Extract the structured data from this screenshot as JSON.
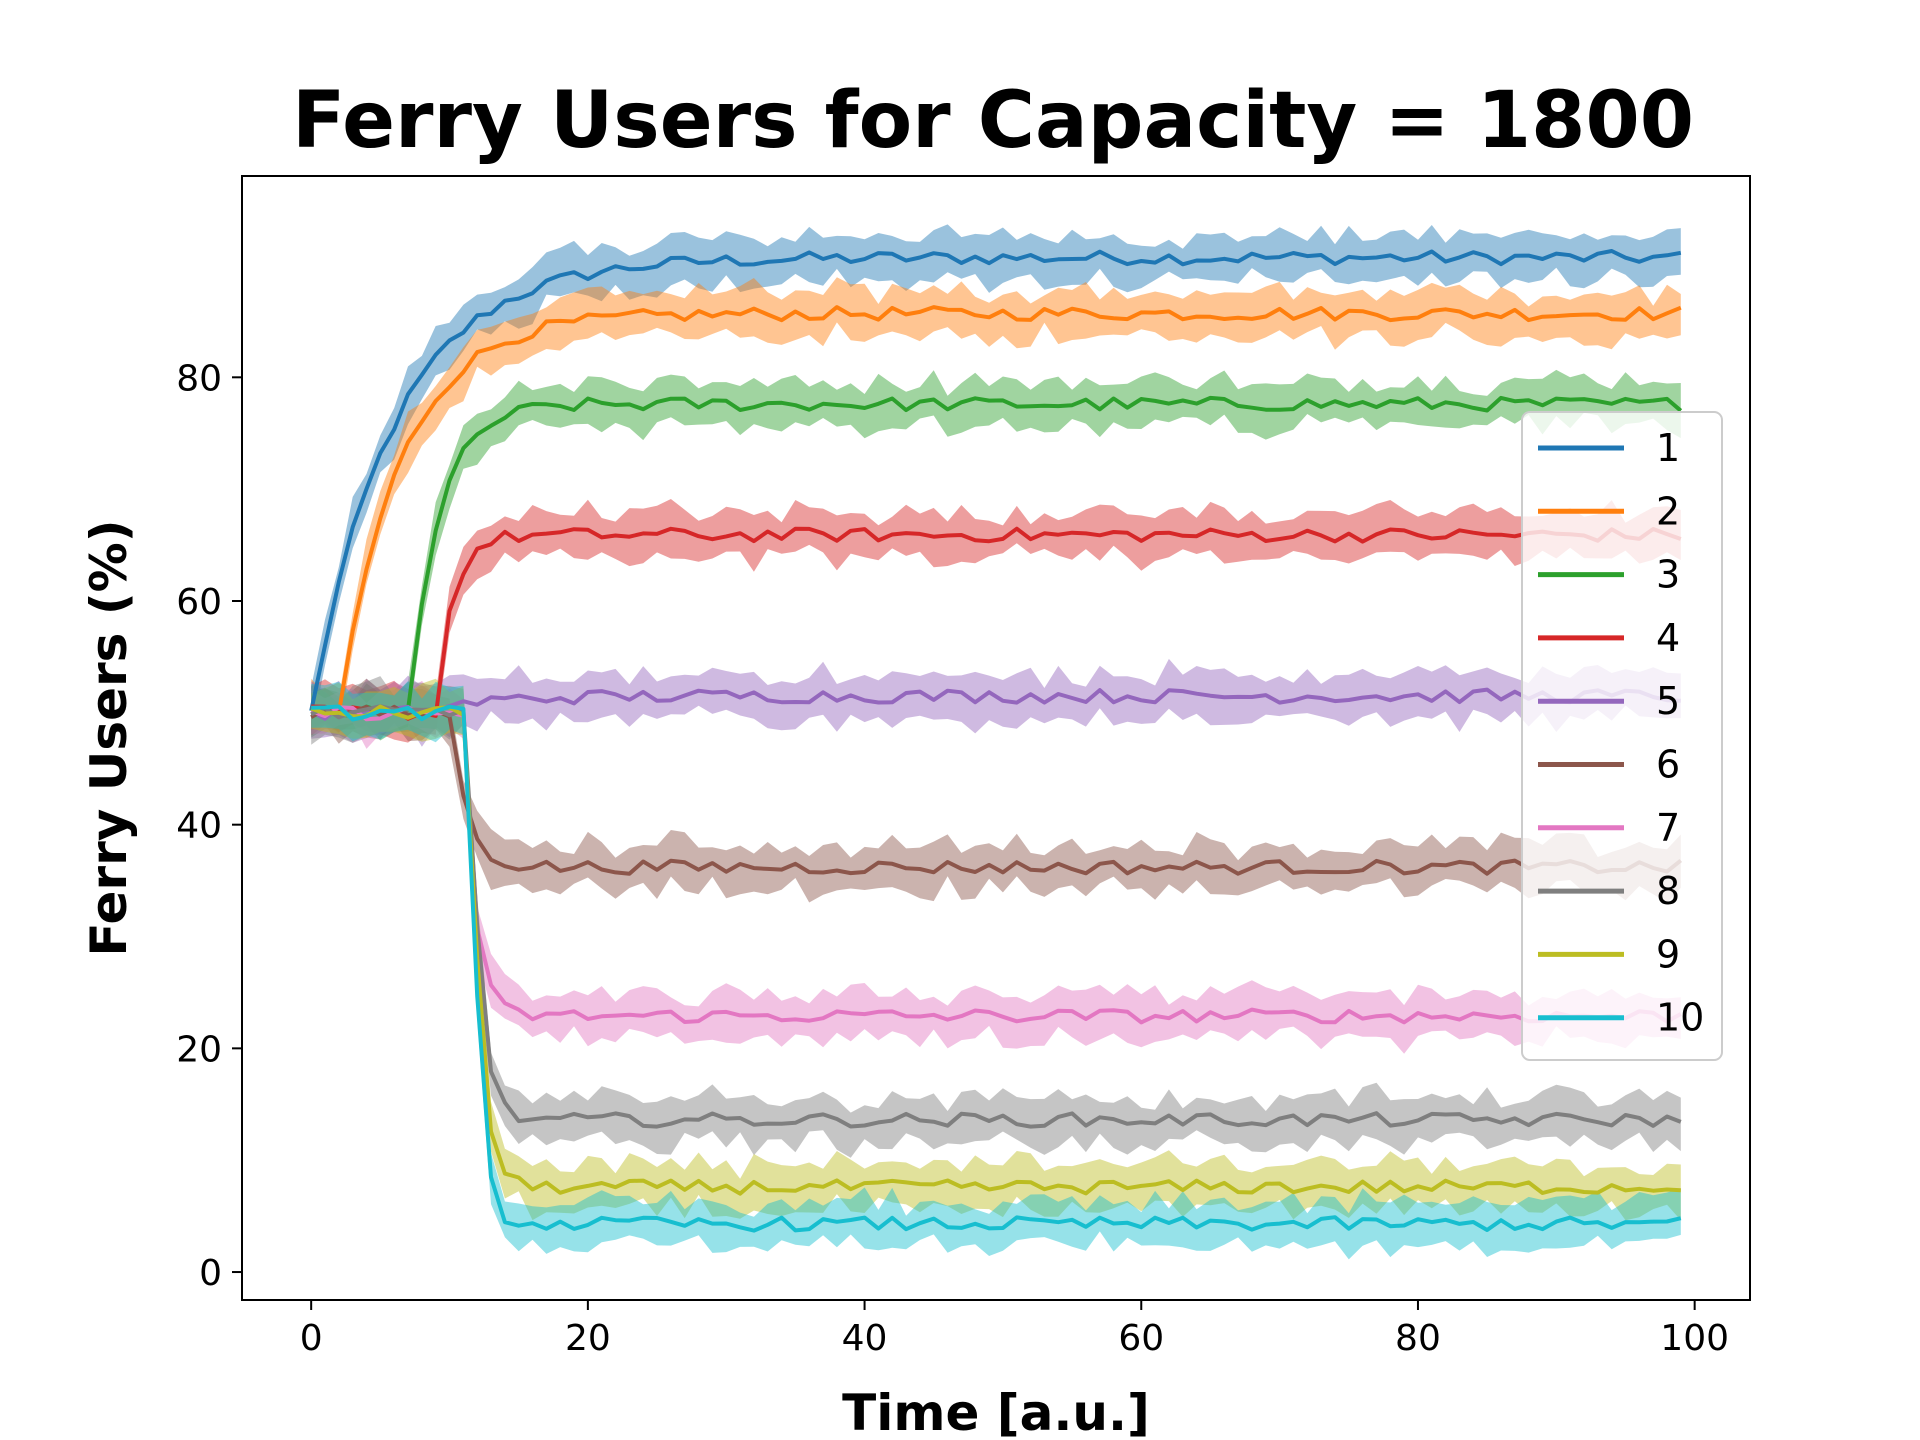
{
  "chart_data": {
    "type": "line",
    "title": "Ferry Users for Capacity = 1800",
    "xlabel": "Time [a.u.]",
    "ylabel": "Ferry Users (%)",
    "xlim": [
      -5,
      104
    ],
    "ylim": [
      -2.5,
      98
    ],
    "xticks": [
      0,
      20,
      40,
      60,
      80,
      100
    ],
    "yticks": [
      0,
      20,
      40,
      60,
      80
    ],
    "grid": false,
    "legend_position": "center-right",
    "x_start": 0,
    "x_end": 99,
    "band_halfwidth": 2.0,
    "series": [
      {
        "name": "1",
        "color": "#1f77b4",
        "initial": 50,
        "final": 90.7,
        "tau": 6,
        "delay": 0
      },
      {
        "name": "2",
        "color": "#ff7f0e",
        "initial": 50,
        "final": 85.7,
        "tau": 4.5,
        "delay": 2
      },
      {
        "name": "3",
        "color": "#2ca02c",
        "initial": 50,
        "final": 77.6,
        "tau": 2.2,
        "delay": 7
      },
      {
        "name": "4",
        "color": "#d62728",
        "initial": 50,
        "final": 65.9,
        "tau": 1.2,
        "delay": 9
      },
      {
        "name": "5",
        "color": "#9467bd",
        "initial": 50,
        "final": 51.5,
        "tau": 4,
        "delay": 8
      },
      {
        "name": "6",
        "color": "#8c564b",
        "initial": 50,
        "final": 36.2,
        "tau": 1.2,
        "delay": 10
      },
      {
        "name": "7",
        "color": "#e377c2",
        "initial": 50,
        "final": 22.9,
        "tau": 0.8,
        "delay": 11
      },
      {
        "name": "8",
        "color": "#7f7f7f",
        "initial": 50,
        "final": 13.6,
        "tau": 0.7,
        "delay": 11.5
      },
      {
        "name": "9",
        "color": "#bcbd22",
        "initial": 50,
        "final": 7.6,
        "tau": 0.7,
        "delay": 11.5
      },
      {
        "name": "10",
        "color": "#17becf",
        "initial": 50,
        "final": 4.3,
        "tau": 0.6,
        "delay": 11.5
      }
    ]
  }
}
